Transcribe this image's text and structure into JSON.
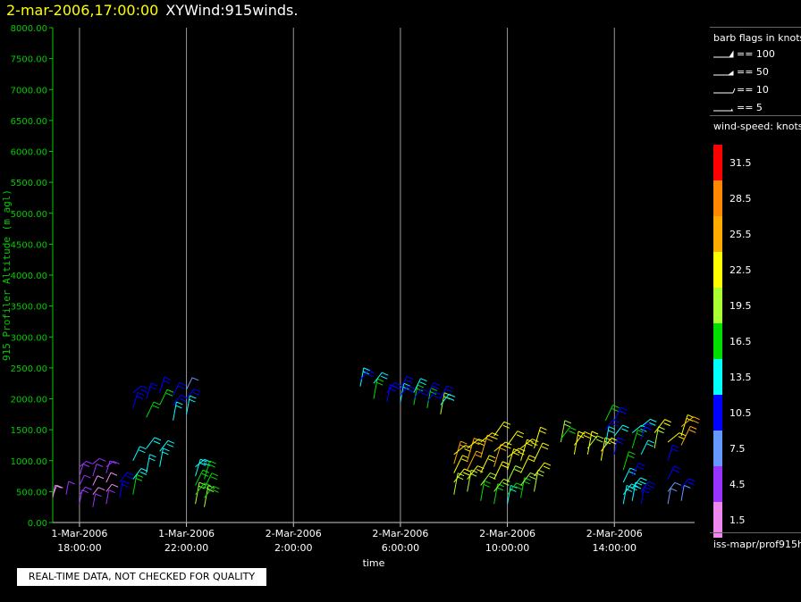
{
  "header": {
    "timestamp": "2-mar-2006,17:00:00",
    "title": "XYWind:915winds."
  },
  "chart_data": {
    "type": "scatter",
    "title": "XYWind:915winds.",
    "xlabel": "time",
    "ylabel": "915 Profiler Altitude (m agl)",
    "x_ticks": [
      {
        "date": "1-Mar-2006",
        "time": "18:00:00",
        "value": "2006-03-01T18:00"
      },
      {
        "date": "1-Mar-2006",
        "time": "22:00:00",
        "value": "2006-03-01T22:00"
      },
      {
        "date": "2-Mar-2006",
        "time": "2:00:00",
        "value": "2006-03-02T02:00"
      },
      {
        "date": "2-Mar-2006",
        "time": "6:00:00",
        "value": "2006-03-02T06:00"
      },
      {
        "date": "2-Mar-2006",
        "time": "10:00:00",
        "value": "2006-03-02T10:00"
      },
      {
        "date": "2-Mar-2006",
        "time": "14:00:00",
        "value": "2006-03-02T14:00"
      }
    ],
    "xlim": [
      "2006-03-01T17:00",
      "2006-03-02T17:00"
    ],
    "y_ticks": [
      "0.00",
      "500.00",
      "1000.00",
      "1500.00",
      "2000.00",
      "2500.00",
      "3000.00",
      "3500.00",
      "4000.00",
      "4500.00",
      "5000.00",
      "5500.00",
      "6000.00",
      "6500.00",
      "7000.00",
      "7500.00",
      "8000.00"
    ],
    "ylim": [
      0,
      8000
    ],
    "grid": "vertical lines at x ticks",
    "series": [
      {
        "time": "2006-03-01T17:00",
        "points": [
          [
            400,
            1.5
          ],
          [
            430,
            1.5
          ]
        ]
      },
      {
        "time": "2006-03-01T17:30",
        "points": [
          [
            450,
            3.0
          ]
        ]
      },
      {
        "time": "2006-03-01T18:00",
        "points": [
          [
            300,
            4.5
          ],
          [
            450,
            3.0
          ],
          [
            600,
            3.0
          ],
          [
            750,
            3.0
          ],
          [
            900,
            4.5
          ]
        ]
      },
      {
        "time": "2006-03-01T18:30",
        "points": [
          [
            250,
            3.0
          ],
          [
            450,
            1.5
          ],
          [
            600,
            1.5
          ],
          [
            750,
            3.0
          ],
          [
            950,
            3.0
          ]
        ]
      },
      {
        "time": "2006-03-01T19:00",
        "points": [
          [
            300,
            4.5
          ],
          [
            500,
            1.5
          ],
          [
            650,
            1.5
          ],
          [
            800,
            3.0
          ],
          [
            900,
            4.5
          ]
        ]
      },
      {
        "time": "2006-03-01T19:30",
        "points": [
          [
            400,
            10.5
          ],
          [
            650,
            10.5
          ]
        ]
      },
      {
        "time": "2006-03-01T20:00",
        "points": [
          [
            450,
            16.5
          ],
          [
            700,
            13.5
          ],
          [
            1000,
            13.5
          ],
          [
            1850,
            10.5
          ],
          [
            2100,
            10.5
          ]
        ]
      },
      {
        "time": "2006-03-01T20:30",
        "points": [
          [
            800,
            13.5
          ],
          [
            1200,
            13.5
          ],
          [
            1700,
            16.5
          ],
          [
            2000,
            10.5
          ]
        ]
      },
      {
        "time": "2006-03-01T21:00",
        "points": [
          [
            900,
            13.5
          ],
          [
            1150,
            13.5
          ],
          [
            1900,
            16.5
          ],
          [
            2100,
            10.5
          ]
        ]
      },
      {
        "time": "2006-03-01T21:30",
        "points": [
          [
            1650,
            13.5
          ],
          [
            1900,
            10.5
          ],
          [
            2050,
            10.5
          ]
        ]
      },
      {
        "time": "2006-03-01T22:00",
        "points": [
          [
            1750,
            13.5
          ],
          [
            2000,
            10.5
          ],
          [
            2150,
            7.5
          ]
        ]
      },
      {
        "time": "2006-03-01T22:20",
        "points": [
          [
            300,
            19.5
          ],
          [
            450,
            16.5
          ],
          [
            600,
            16.5
          ],
          [
            750,
            13.5
          ],
          [
            900,
            13.5
          ]
        ]
      },
      {
        "time": "2006-03-01T22:40",
        "points": [
          [
            250,
            19.5
          ],
          [
            400,
            16.5
          ],
          [
            550,
            16.5
          ],
          [
            700,
            16.5
          ]
        ]
      },
      {
        "time": "2006-03-02T04:30",
        "points": [
          [
            2200,
            13.5
          ],
          [
            2300,
            10.5
          ]
        ]
      },
      {
        "time": "2006-03-02T05:00",
        "points": [
          [
            2000,
            16.5
          ],
          [
            2250,
            13.5
          ]
        ]
      },
      {
        "time": "2006-03-02T05:30",
        "points": [
          [
            1950,
            10.5
          ],
          [
            2100,
            10.5
          ]
        ]
      },
      {
        "time": "2006-03-02T06:00",
        "points": [
          [
            1950,
            13.5
          ],
          [
            2050,
            10.5
          ],
          [
            2150,
            10.5
          ]
        ]
      },
      {
        "time": "2006-03-02T06:30",
        "points": [
          [
            1900,
            16.5
          ],
          [
            2000,
            10.5
          ],
          [
            2100,
            13.5
          ]
        ]
      },
      {
        "time": "2006-03-02T07:00",
        "points": [
          [
            1850,
            16.5
          ],
          [
            1950,
            10.5
          ],
          [
            2050,
            10.5
          ]
        ]
      },
      {
        "time": "2006-03-02T07:30",
        "points": [
          [
            1750,
            19.5
          ],
          [
            1900,
            13.5
          ],
          [
            2000,
            10.5
          ]
        ]
      },
      {
        "time": "2006-03-02T08:00",
        "points": [
          [
            450,
            19.5
          ],
          [
            650,
            22.5
          ],
          [
            800,
            22.5
          ],
          [
            950,
            25.5
          ],
          [
            1100,
            22.5
          ]
        ]
      },
      {
        "time": "2006-03-02T08:30",
        "points": [
          [
            500,
            19.5
          ],
          [
            700,
            22.5
          ],
          [
            850,
            25.5
          ],
          [
            1000,
            25.5
          ],
          [
            1200,
            22.5
          ]
        ]
      },
      {
        "time": "2006-03-02T09:00",
        "points": [
          [
            350,
            16.5
          ],
          [
            600,
            19.5
          ],
          [
            800,
            22.5
          ],
          [
            1050,
            25.5
          ],
          [
            1300,
            22.5
          ]
        ]
      },
      {
        "time": "2006-03-02T09:30",
        "points": [
          [
            300,
            16.5
          ],
          [
            500,
            19.5
          ],
          [
            700,
            22.5
          ],
          [
            900,
            25.5
          ],
          [
            1150,
            22.5
          ],
          [
            1400,
            22.5
          ]
        ]
      },
      {
        "time": "2006-03-02T10:00",
        "points": [
          [
            300,
            13.5
          ],
          [
            450,
            16.5
          ],
          [
            650,
            19.5
          ],
          [
            850,
            22.5
          ],
          [
            1050,
            22.5
          ],
          [
            1250,
            22.5
          ]
        ]
      },
      {
        "time": "2006-03-02T10:30",
        "points": [
          [
            400,
            16.5
          ],
          [
            600,
            19.5
          ],
          [
            800,
            22.5
          ],
          [
            1000,
            22.5
          ],
          [
            1200,
            22.5
          ]
        ]
      },
      {
        "time": "2006-03-02T11:00",
        "points": [
          [
            500,
            19.5
          ],
          [
            750,
            22.5
          ],
          [
            1000,
            22.5
          ],
          [
            1200,
            22.5
          ]
        ]
      },
      {
        "time": "2006-03-02T12:00",
        "points": [
          [
            1300,
            19.5
          ],
          [
            1350,
            16.5
          ]
        ]
      },
      {
        "time": "2006-03-02T12:30",
        "points": [
          [
            1100,
            22.5
          ],
          [
            1250,
            22.5
          ]
        ]
      },
      {
        "time": "2006-03-02T13:00",
        "points": [
          [
            1100,
            22.5
          ],
          [
            1200,
            19.5
          ]
        ]
      },
      {
        "time": "2006-03-02T13:30",
        "points": [
          [
            1000,
            22.5
          ],
          [
            1150,
            22.5
          ]
        ]
      },
      {
        "time": "2006-03-02T13:40",
        "points": [
          [
            1250,
            13.5
          ],
          [
            1500,
            10.5
          ],
          [
            1650,
            16.5
          ]
        ]
      },
      {
        "time": "2006-03-02T14:00",
        "points": [
          [
            1100,
            10.5
          ],
          [
            1400,
            13.5
          ],
          [
            1650,
            10.5
          ]
        ]
      },
      {
        "time": "2006-03-02T14:20",
        "points": [
          [
            300,
            13.5
          ],
          [
            450,
            13.5
          ],
          [
            650,
            13.5
          ],
          [
            850,
            16.5
          ]
        ]
      },
      {
        "time": "2006-03-02T14:40",
        "points": [
          [
            350,
            13.5
          ],
          [
            550,
            13.5
          ],
          [
            750,
            10.5
          ],
          [
            1200,
            16.5
          ],
          [
            1450,
            13.5
          ]
        ]
      },
      {
        "time": "2006-03-02T15:00",
        "points": [
          [
            300,
            10.5
          ],
          [
            500,
            10.5
          ],
          [
            1100,
            13.5
          ],
          [
            1350,
            10.5
          ],
          [
            1550,
            13.5
          ]
        ]
      },
      {
        "time": "2006-03-02T15:30",
        "points": [
          [
            1200,
            19.5
          ],
          [
            1450,
            22.5
          ]
        ]
      },
      {
        "time": "2006-03-02T16:00",
        "points": [
          [
            300,
            7.5
          ],
          [
            500,
            7.5
          ],
          [
            700,
            10.5
          ],
          [
            1000,
            10.5
          ],
          [
            1300,
            22.5
          ]
        ]
      },
      {
        "time": "2006-03-02T16:30",
        "points": [
          [
            350,
            7.5
          ],
          [
            550,
            10.5
          ],
          [
            1250,
            25.5
          ],
          [
            1400,
            22.5
          ],
          [
            1550,
            25.5
          ]
        ]
      }
    ]
  },
  "legend": {
    "barb_title": "barb flags in knots",
    "barbs": [
      {
        "label": "== 100",
        "kind": "flag"
      },
      {
        "label": "== 50",
        "kind": "pennant"
      },
      {
        "label": "== 10",
        "kind": "full"
      },
      {
        "label": "== 5",
        "kind": "half"
      }
    ],
    "speed_title": "wind-speed: knots",
    "bins": [
      {
        "label": "31.5",
        "color": "#ff0000"
      },
      {
        "label": "28.5",
        "color": "#ff8800"
      },
      {
        "label": "25.5",
        "color": "#ffaa00"
      },
      {
        "label": "22.5",
        "color": "#ffff00"
      },
      {
        "label": "19.5",
        "color": "#aaff33"
      },
      {
        "label": "16.5",
        "color": "#00dd00"
      },
      {
        "label": "13.5",
        "color": "#00ffff"
      },
      {
        "label": "10.5",
        "color": "#0000ff"
      },
      {
        "label": "7.5",
        "color": "#6699ff"
      },
      {
        "label": "4.5",
        "color": "#9933ff"
      },
      {
        "label": "1.5",
        "color": "#ee88ee"
      }
    ]
  },
  "footer": {
    "source": "iss-mapr/prof915h",
    "notice": "REAL-TIME DATA, NOT CHECKED FOR QUALITY"
  }
}
